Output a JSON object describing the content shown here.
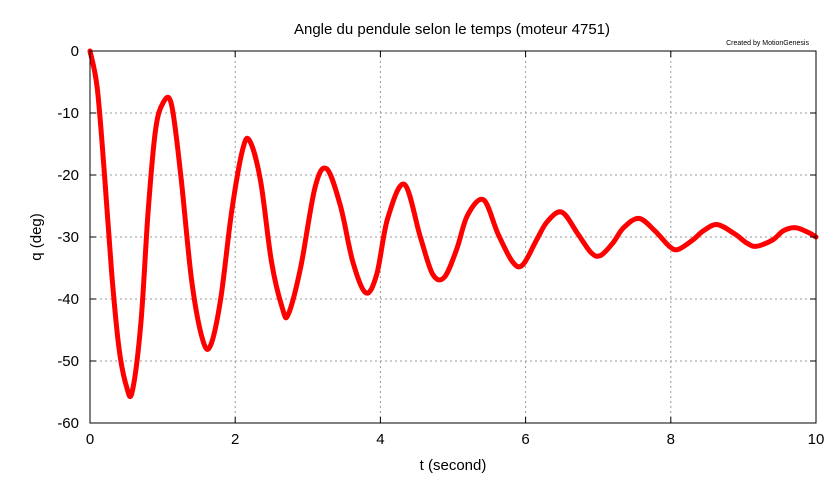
{
  "chart_data": {
    "type": "line",
    "title": "Angle du pendule selon le temps (moteur 4751)",
    "credit": "Created by MotionGenesis",
    "xlabel": "t (second)",
    "ylabel": "q (deg)",
    "xlim": [
      0,
      10
    ],
    "ylim": [
      -60,
      0
    ],
    "xticks": [
      0,
      2,
      4,
      6,
      8,
      10
    ],
    "yticks": [
      0,
      -10,
      -20,
      -30,
      -40,
      -50,
      -60
    ],
    "xtick_labels": [
      "0",
      "2",
      "4",
      "6",
      "8",
      "10"
    ],
    "ytick_labels": [
      "0",
      "-10",
      "-20",
      "-30",
      "-40",
      "-50",
      "-60"
    ],
    "grid": true,
    "series": [
      {
        "color": "#ff0000",
        "x": [
          0,
          0.1,
          0.2,
          0.3,
          0.4,
          0.5,
          0.58,
          0.7,
          0.8,
          0.9,
          1.0,
          1.12,
          1.25,
          1.4,
          1.55,
          1.66,
          1.8,
          1.95,
          2.1,
          2.2,
          2.35,
          2.5,
          2.65,
          2.73,
          2.9,
          3.1,
          3.26,
          3.45,
          3.62,
          3.8,
          3.95,
          4.1,
          4.33,
          4.55,
          4.72,
          4.88,
          5.05,
          5.2,
          5.42,
          5.62,
          5.82,
          5.96,
          6.15,
          6.3,
          6.5,
          6.72,
          6.9,
          7.03,
          7.2,
          7.35,
          7.56,
          7.78,
          7.98,
          8.1,
          8.3,
          8.45,
          8.64,
          8.88,
          9.05,
          9.18,
          9.4,
          9.55,
          9.72,
          9.9,
          10.0
        ],
        "values": [
          0,
          -6,
          -20,
          -36,
          -48,
          -54,
          -55,
          -44,
          -26,
          -13,
          -8.5,
          -8.5,
          -20,
          -37,
          -46.5,
          -47.5,
          -40,
          -26,
          -16,
          -14.5,
          -21,
          -34,
          -41.5,
          -42.5,
          -35,
          -22,
          -19,
          -25,
          -34,
          -39,
          -36,
          -27,
          -21.5,
          -30,
          -36,
          -36.5,
          -32,
          -26.5,
          -24,
          -29.5,
          -34,
          -34.5,
          -30.5,
          -27.5,
          -26,
          -29.5,
          -32.5,
          -33,
          -31,
          -28.5,
          -27,
          -29,
          -31.5,
          -32,
          -30.5,
          -29,
          -28,
          -29.5,
          -31,
          -31.5,
          -30.5,
          -29,
          -28.5,
          -29.3,
          -30
        ]
      }
    ]
  }
}
